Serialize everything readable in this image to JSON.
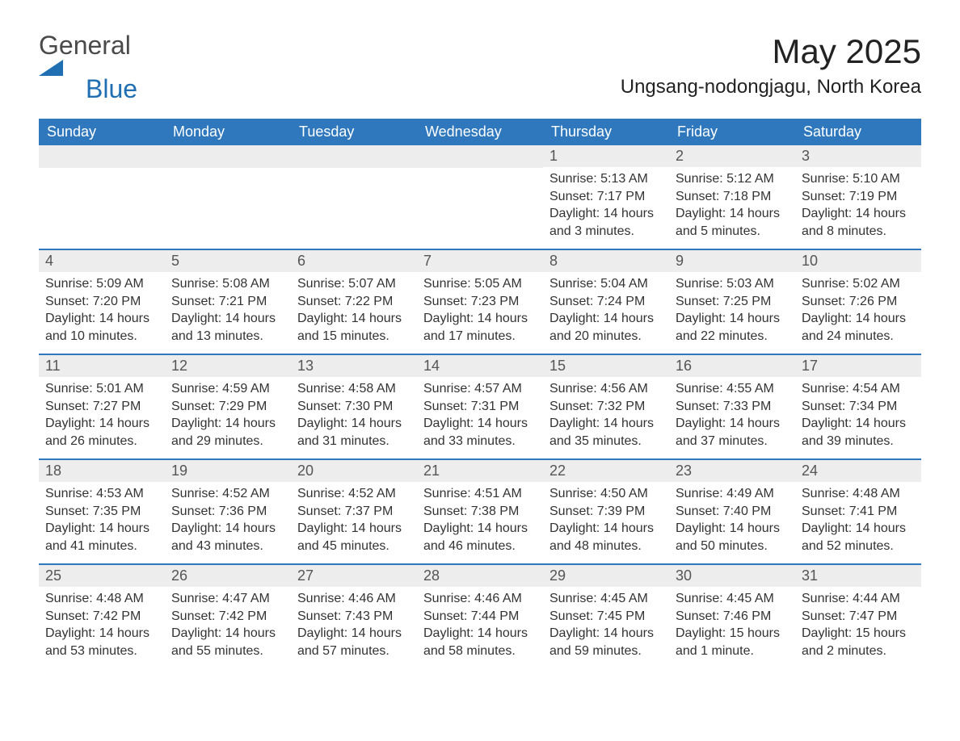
{
  "brand": {
    "word1": "General",
    "word2": "Blue",
    "word1_color": "#4a4a4a",
    "word2_color": "#1f6fb2",
    "triangle_color": "#1f6fb2"
  },
  "header": {
    "month_title": "May 2025",
    "location": "Ungsang-nodongjagu, North Korea"
  },
  "colors": {
    "header_bg": "#2f78bd",
    "header_fg": "#ffffff",
    "daynum_bg": "#ededed",
    "daynum_fg": "#555555",
    "body_fg": "#333333",
    "week_divider": "#2f78bd",
    "page_bg": "#ffffff"
  },
  "days_of_week": [
    "Sunday",
    "Monday",
    "Tuesday",
    "Wednesday",
    "Thursday",
    "Friday",
    "Saturday"
  ],
  "weeks": [
    [
      {
        "day": "",
        "sunrise": "",
        "sunset": "",
        "daylight": ""
      },
      {
        "day": "",
        "sunrise": "",
        "sunset": "",
        "daylight": ""
      },
      {
        "day": "",
        "sunrise": "",
        "sunset": "",
        "daylight": ""
      },
      {
        "day": "",
        "sunrise": "",
        "sunset": "",
        "daylight": ""
      },
      {
        "day": "1",
        "sunrise": "Sunrise: 5:13 AM",
        "sunset": "Sunset: 7:17 PM",
        "daylight": "Daylight: 14 hours and 3 minutes."
      },
      {
        "day": "2",
        "sunrise": "Sunrise: 5:12 AM",
        "sunset": "Sunset: 7:18 PM",
        "daylight": "Daylight: 14 hours and 5 minutes."
      },
      {
        "day": "3",
        "sunrise": "Sunrise: 5:10 AM",
        "sunset": "Sunset: 7:19 PM",
        "daylight": "Daylight: 14 hours and 8 minutes."
      }
    ],
    [
      {
        "day": "4",
        "sunrise": "Sunrise: 5:09 AM",
        "sunset": "Sunset: 7:20 PM",
        "daylight": "Daylight: 14 hours and 10 minutes."
      },
      {
        "day": "5",
        "sunrise": "Sunrise: 5:08 AM",
        "sunset": "Sunset: 7:21 PM",
        "daylight": "Daylight: 14 hours and 13 minutes."
      },
      {
        "day": "6",
        "sunrise": "Sunrise: 5:07 AM",
        "sunset": "Sunset: 7:22 PM",
        "daylight": "Daylight: 14 hours and 15 minutes."
      },
      {
        "day": "7",
        "sunrise": "Sunrise: 5:05 AM",
        "sunset": "Sunset: 7:23 PM",
        "daylight": "Daylight: 14 hours and 17 minutes."
      },
      {
        "day": "8",
        "sunrise": "Sunrise: 5:04 AM",
        "sunset": "Sunset: 7:24 PM",
        "daylight": "Daylight: 14 hours and 20 minutes."
      },
      {
        "day": "9",
        "sunrise": "Sunrise: 5:03 AM",
        "sunset": "Sunset: 7:25 PM",
        "daylight": "Daylight: 14 hours and 22 minutes."
      },
      {
        "day": "10",
        "sunrise": "Sunrise: 5:02 AM",
        "sunset": "Sunset: 7:26 PM",
        "daylight": "Daylight: 14 hours and 24 minutes."
      }
    ],
    [
      {
        "day": "11",
        "sunrise": "Sunrise: 5:01 AM",
        "sunset": "Sunset: 7:27 PM",
        "daylight": "Daylight: 14 hours and 26 minutes."
      },
      {
        "day": "12",
        "sunrise": "Sunrise: 4:59 AM",
        "sunset": "Sunset: 7:29 PM",
        "daylight": "Daylight: 14 hours and 29 minutes."
      },
      {
        "day": "13",
        "sunrise": "Sunrise: 4:58 AM",
        "sunset": "Sunset: 7:30 PM",
        "daylight": "Daylight: 14 hours and 31 minutes."
      },
      {
        "day": "14",
        "sunrise": "Sunrise: 4:57 AM",
        "sunset": "Sunset: 7:31 PM",
        "daylight": "Daylight: 14 hours and 33 minutes."
      },
      {
        "day": "15",
        "sunrise": "Sunrise: 4:56 AM",
        "sunset": "Sunset: 7:32 PM",
        "daylight": "Daylight: 14 hours and 35 minutes."
      },
      {
        "day": "16",
        "sunrise": "Sunrise: 4:55 AM",
        "sunset": "Sunset: 7:33 PM",
        "daylight": "Daylight: 14 hours and 37 minutes."
      },
      {
        "day": "17",
        "sunrise": "Sunrise: 4:54 AM",
        "sunset": "Sunset: 7:34 PM",
        "daylight": "Daylight: 14 hours and 39 minutes."
      }
    ],
    [
      {
        "day": "18",
        "sunrise": "Sunrise: 4:53 AM",
        "sunset": "Sunset: 7:35 PM",
        "daylight": "Daylight: 14 hours and 41 minutes."
      },
      {
        "day": "19",
        "sunrise": "Sunrise: 4:52 AM",
        "sunset": "Sunset: 7:36 PM",
        "daylight": "Daylight: 14 hours and 43 minutes."
      },
      {
        "day": "20",
        "sunrise": "Sunrise: 4:52 AM",
        "sunset": "Sunset: 7:37 PM",
        "daylight": "Daylight: 14 hours and 45 minutes."
      },
      {
        "day": "21",
        "sunrise": "Sunrise: 4:51 AM",
        "sunset": "Sunset: 7:38 PM",
        "daylight": "Daylight: 14 hours and 46 minutes."
      },
      {
        "day": "22",
        "sunrise": "Sunrise: 4:50 AM",
        "sunset": "Sunset: 7:39 PM",
        "daylight": "Daylight: 14 hours and 48 minutes."
      },
      {
        "day": "23",
        "sunrise": "Sunrise: 4:49 AM",
        "sunset": "Sunset: 7:40 PM",
        "daylight": "Daylight: 14 hours and 50 minutes."
      },
      {
        "day": "24",
        "sunrise": "Sunrise: 4:48 AM",
        "sunset": "Sunset: 7:41 PM",
        "daylight": "Daylight: 14 hours and 52 minutes."
      }
    ],
    [
      {
        "day": "25",
        "sunrise": "Sunrise: 4:48 AM",
        "sunset": "Sunset: 7:42 PM",
        "daylight": "Daylight: 14 hours and 53 minutes."
      },
      {
        "day": "26",
        "sunrise": "Sunrise: 4:47 AM",
        "sunset": "Sunset: 7:42 PM",
        "daylight": "Daylight: 14 hours and 55 minutes."
      },
      {
        "day": "27",
        "sunrise": "Sunrise: 4:46 AM",
        "sunset": "Sunset: 7:43 PM",
        "daylight": "Daylight: 14 hours and 57 minutes."
      },
      {
        "day": "28",
        "sunrise": "Sunrise: 4:46 AM",
        "sunset": "Sunset: 7:44 PM",
        "daylight": "Daylight: 14 hours and 58 minutes."
      },
      {
        "day": "29",
        "sunrise": "Sunrise: 4:45 AM",
        "sunset": "Sunset: 7:45 PM",
        "daylight": "Daylight: 14 hours and 59 minutes."
      },
      {
        "day": "30",
        "sunrise": "Sunrise: 4:45 AM",
        "sunset": "Sunset: 7:46 PM",
        "daylight": "Daylight: 15 hours and 1 minute."
      },
      {
        "day": "31",
        "sunrise": "Sunrise: 4:44 AM",
        "sunset": "Sunset: 7:47 PM",
        "daylight": "Daylight: 15 hours and 2 minutes."
      }
    ]
  ]
}
